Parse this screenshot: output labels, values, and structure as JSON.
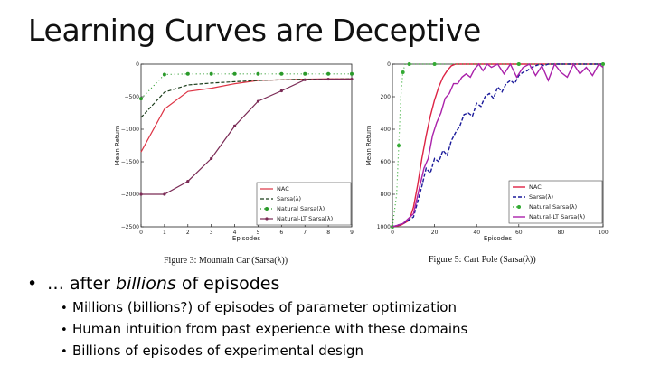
{
  "slide": {
    "title": "Learning Curves are Deceptive",
    "bullet_main_prefix": "… after ",
    "bullet_main_italic": "billions",
    "bullet_main_suffix": " of episodes",
    "sub_bullets": [
      "Millions (billions?) of episodes of parameter optimization",
      "Human intuition from past experience with these domains",
      "Billions of episodes of experimental design"
    ]
  },
  "colors": {
    "nac": "#dd3344",
    "sarsa": "#1b3d1b",
    "natural_sarsa": "#2a9a2a",
    "natural_lt": "#7a2a55",
    "cart_nac": "#dd2244",
    "cart_sarsa": "#1a1a9a",
    "cart_natural_sarsa": "#33aa33",
    "cart_natural_lt": "#aa22aa"
  },
  "chart_data": [
    {
      "type": "line",
      "caption": "Figure 3: Mountain Car (Sarsa(λ))",
      "xlabel": "Episodes",
      "ylabel": "Mean Return",
      "xlim": [
        0,
        9
      ],
      "ylim": [
        -2500,
        0
      ],
      "xticks": [
        "0",
        "1",
        "2",
        "3",
        "4",
        "5",
        "6",
        "7",
        "8",
        "9"
      ],
      "yticks": [
        "0",
        "−500",
        "−1000",
        "−1500",
        "−2000",
        "−2500"
      ],
      "legend_position": "lower-right",
      "series": [
        {
          "name": "NAC",
          "x": [
            0,
            1,
            2,
            3,
            4,
            5,
            6,
            7,
            8,
            9
          ],
          "y": [
            -1350,
            -690,
            -420,
            -370,
            -300,
            -250,
            -240,
            -230,
            -225,
            -225
          ]
        },
        {
          "name": "Sarsa(λ)",
          "x": [
            0,
            1,
            2,
            3,
            4,
            5,
            6,
            7,
            8,
            9
          ],
          "y": [
            -820,
            -430,
            -320,
            -290,
            -270,
            -250,
            -240,
            -230,
            -230,
            -225
          ]
        },
        {
          "name": "Natural Sarsa(λ)",
          "x": [
            0,
            1,
            2,
            3,
            4,
            5,
            6,
            7,
            8,
            9
          ],
          "y": [
            -530,
            -160,
            -150,
            -150,
            -150,
            -150,
            -150,
            -150,
            -150,
            -150
          ]
        },
        {
          "name": "Natural-LT Sarsa(λ)",
          "x": [
            0,
            1,
            2,
            3,
            4,
            5,
            6,
            7,
            8,
            9
          ],
          "y": [
            -2000,
            -2000,
            -1800,
            -1450,
            -950,
            -570,
            -410,
            -240,
            -230,
            -230
          ]
        }
      ]
    },
    {
      "type": "line",
      "caption": "Figure 5: Cart Pole (Sarsa(λ))",
      "xlabel": "Episodes",
      "ylabel": "Mean Return",
      "xlim": [
        0,
        100
      ],
      "ylim": [
        0,
        1000
      ],
      "xticks": [
        "0",
        "20",
        "40",
        "60",
        "80",
        "100"
      ],
      "yticks": [
        "0",
        "200",
        "400",
        "600",
        "800",
        "1000"
      ],
      "legend_position": "lower-right",
      "series": [
        {
          "name": "NAC",
          "x": [
            0,
            4,
            8,
            10,
            12,
            14,
            16,
            18,
            20,
            22,
            24,
            26,
            28,
            30,
            32,
            35,
            40,
            50,
            60,
            70,
            80,
            90,
            100
          ],
          "y": [
            0,
            10,
            40,
            120,
            260,
            420,
            560,
            680,
            780,
            860,
            920,
            960,
            990,
            1000,
            1000,
            1000,
            1000,
            1000,
            1000,
            1000,
            1000,
            1000,
            1000
          ]
        },
        {
          "name": "Sarsa(λ)",
          "x": [
            0,
            5,
            10,
            14,
            16,
            18,
            20,
            22,
            24,
            26,
            28,
            30,
            32,
            34,
            36,
            38,
            40,
            42,
            44,
            46,
            48,
            50,
            52,
            54,
            56,
            58,
            60,
            62,
            64,
            66,
            68,
            70,
            72,
            74,
            76,
            78,
            80,
            85,
            90,
            95,
            100
          ],
          "y": [
            0,
            20,
            60,
            250,
            360,
            330,
            420,
            400,
            470,
            440,
            530,
            580,
            620,
            690,
            700,
            680,
            760,
            740,
            800,
            820,
            790,
            860,
            830,
            880,
            900,
            880,
            930,
            950,
            960,
            980,
            990,
            1000,
            990,
            1000,
            1000,
            1000,
            1000,
            1000,
            1000,
            1000,
            1000
          ]
        },
        {
          "name": "Natural Sarsa(λ)",
          "x": [
            0,
            2,
            3,
            4,
            5,
            6,
            8,
            10,
            20,
            40,
            60,
            80,
            100
          ],
          "y": [
            0,
            200,
            500,
            800,
            950,
            1000,
            1000,
            1000,
            1000,
            1000,
            1000,
            1000,
            1000
          ]
        },
        {
          "name": "Natural-LT Sarsa(λ)",
          "x": [
            0,
            5,
            10,
            13,
            15,
            17,
            19,
            21,
            23,
            25,
            27,
            29,
            31,
            33,
            35,
            37,
            39,
            41,
            43,
            45,
            47,
            50,
            53,
            56,
            59,
            62,
            65,
            68,
            71,
            74,
            77,
            80,
            83,
            86,
            89,
            92,
            95,
            98,
            100
          ],
          "y": [
            0,
            20,
            80,
            250,
            360,
            420,
            560,
            640,
            700,
            790,
            820,
            880,
            880,
            920,
            940,
            920,
            970,
            1000,
            960,
            1000,
            980,
            1000,
            940,
            1000,
            920,
            980,
            1000,
            930,
            990,
            900,
            1000,
            950,
            920,
            1000,
            940,
            980,
            930,
            1000,
            980
          ]
        }
      ]
    }
  ]
}
